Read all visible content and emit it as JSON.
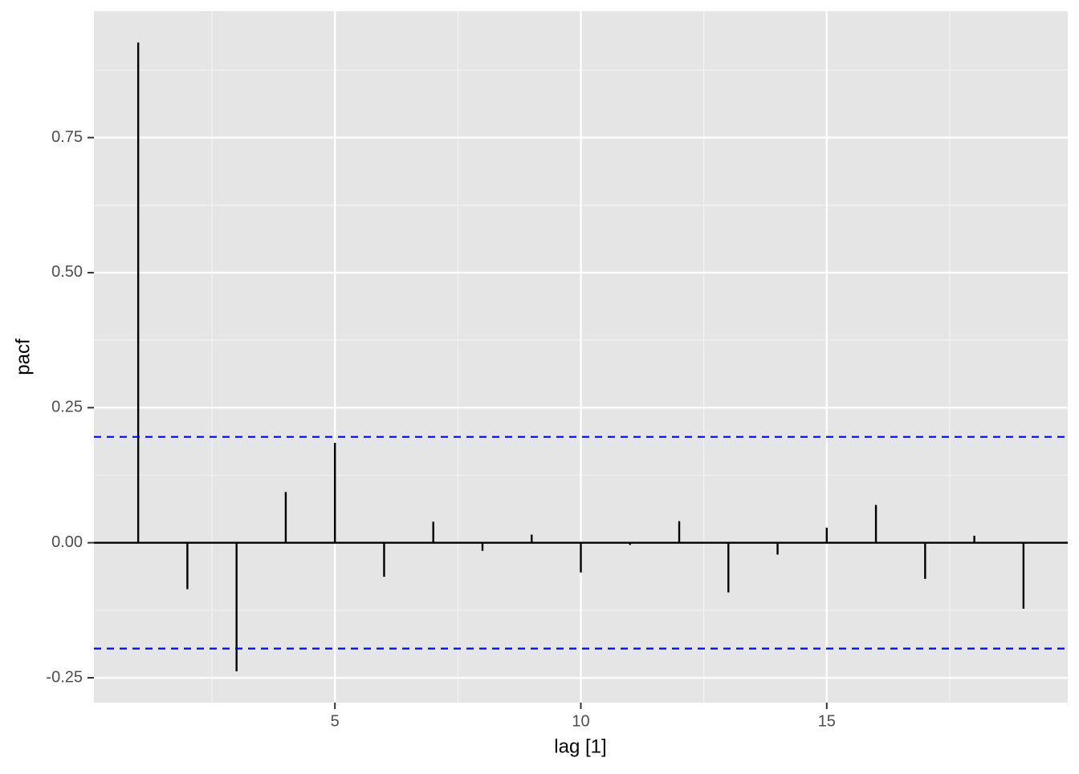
{
  "chart_data": {
    "type": "lollipop",
    "x_label": "lag [1]",
    "y_label": "pacf",
    "x": [
      1,
      2,
      3,
      4,
      5,
      6,
      7,
      8,
      9,
      10,
      11,
      12,
      13,
      14,
      15,
      16,
      17,
      18,
      19
    ],
    "values": [
      0.926,
      -0.086,
      -0.238,
      0.094,
      0.185,
      -0.063,
      0.039,
      -0.015,
      0.015,
      -0.055,
      -0.004,
      0.04,
      -0.092,
      -0.022,
      0.028,
      0.07,
      -0.067,
      0.013,
      -0.122
    ],
    "color": "#000000",
    "confidence_bounds": [
      0.196,
      -0.196
    ],
    "confidence_color": "#0000ff",
    "xlim": [
      0.1,
      19.9
    ],
    "ylim": [
      -0.296,
      0.984
    ],
    "xticks": [
      5,
      10,
      15
    ],
    "yticks": [
      {
        "value": -0.25,
        "label": "-0.25"
      },
      {
        "value": 0,
        "label": "0.00"
      },
      0.25,
      {
        "value": 0.5,
        "label": "0.50"
      },
      0.75
    ],
    "minor_xticks": [
      2.5,
      7.5,
      12.5,
      17.5
    ],
    "minor_yticks": [
      -0.125,
      0.125,
      0.375,
      0.625,
      0.875
    ],
    "grid": true
  }
}
